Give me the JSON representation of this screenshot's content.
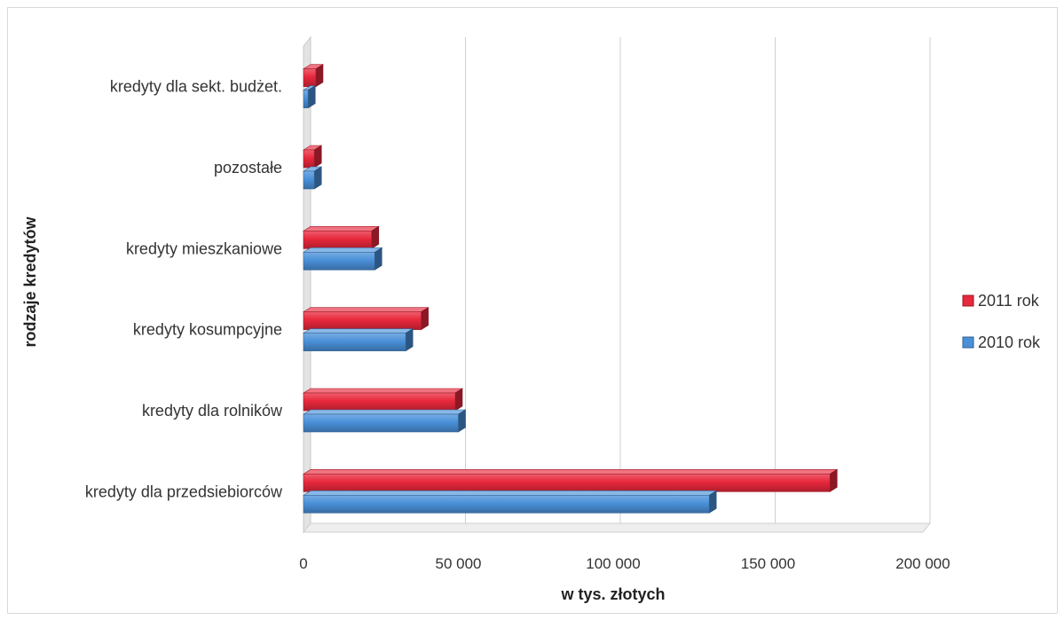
{
  "chart_data": {
    "type": "bar",
    "orientation": "horizontal",
    "title": "",
    "xlabel": "w tys. złotych",
    "ylabel": "rodzaje kredytów",
    "xlim": [
      0,
      200000
    ],
    "x_ticks": [
      0,
      50000,
      100000,
      150000,
      200000
    ],
    "x_tick_labels": [
      "0",
      "50 000",
      "100 000",
      "150 000",
      "200 000"
    ],
    "grid": true,
    "legend_position": "right",
    "categories": [
      "kredyty dla przedsiebiorców",
      "kredyty dla rolników",
      "kredyty kosumpcyjne",
      "kredyty mieszkaniowe",
      "pozostałe",
      "kredyty dla sekt. budżet."
    ],
    "series": [
      {
        "name": "2011 rok",
        "color": "#e8283c",
        "values": [
          170000,
          49000,
          38000,
          22000,
          3500,
          4000
        ]
      },
      {
        "name": "2010 rok",
        "color": "#4a90d9",
        "values": [
          131000,
          50000,
          33000,
          23000,
          3500,
          1500
        ]
      }
    ]
  }
}
